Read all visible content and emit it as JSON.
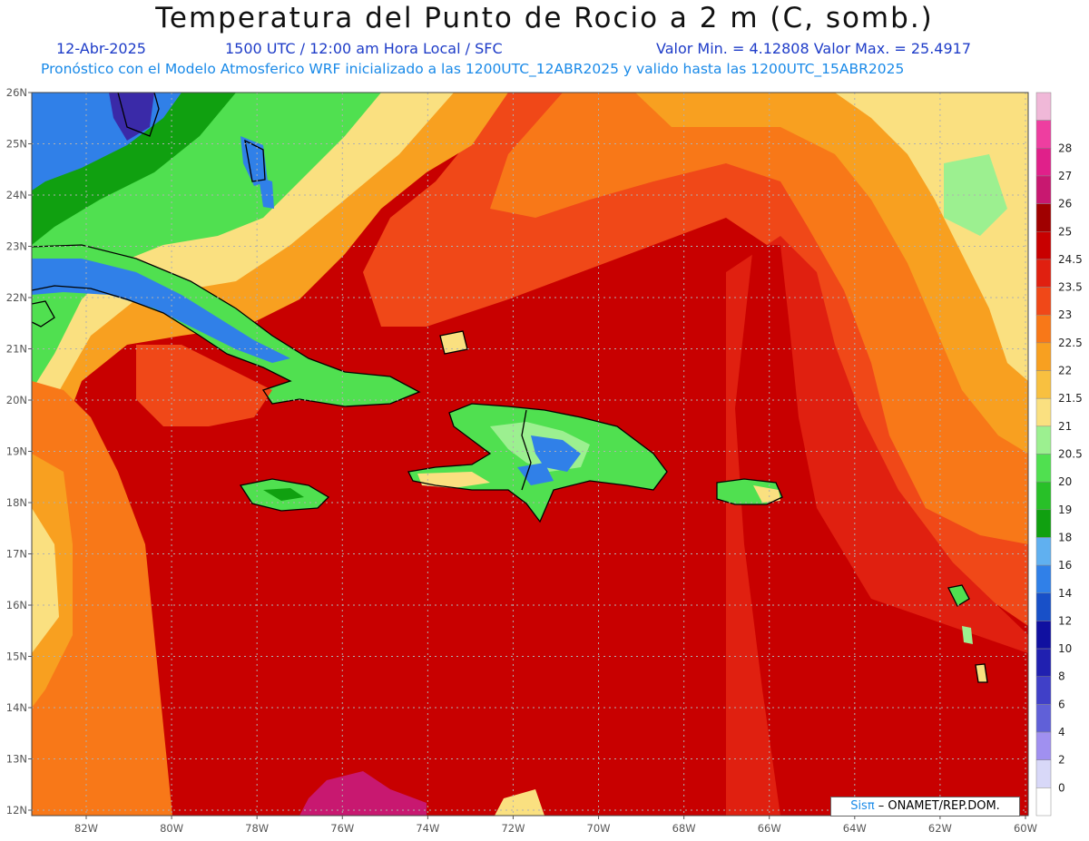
{
  "header": {
    "title": "Temperatura del Punto de Rocio a 2 m (C, somb.)",
    "date": "12-Abr-2025",
    "time": "1500 UTC / 12:00 am Hora Local / SFC",
    "min_max": "Valor Min. = 4.12808  Valor Max. = 25.4917",
    "model_info": "Pronóstico con el Modelo Atmosferico WRF inicializado a las 1200UTC_12ABR2025 y valido hasta las  1200UTC_15ABR2025"
  },
  "map": {
    "lat_labels": [
      "26N",
      "25N",
      "24N",
      "23N",
      "22N",
      "21N",
      "20N",
      "19N",
      "18N",
      "17N",
      "16N",
      "15N",
      "14N",
      "13N",
      "12N"
    ],
    "lon_labels": [
      "82W",
      "80W",
      "78W",
      "76W",
      "74W",
      "72W",
      "70W",
      "68W",
      "66W",
      "64W",
      "62W",
      "60W"
    ]
  },
  "colorbar": {
    "levels": [
      {
        "label": "",
        "color": "#f0b8d8"
      },
      {
        "label": "28",
        "color": "#ee3ea0"
      },
      {
        "label": "27",
        "color": "#e0208a"
      },
      {
        "label": "26",
        "color": "#c81870"
      },
      {
        "label": "25",
        "color": "#a00000"
      },
      {
        "label": "24.5",
        "color": "#c80000"
      },
      {
        "label": "23.5",
        "color": "#e02010"
      },
      {
        "label": "23",
        "color": "#f04818"
      },
      {
        "label": "22.5",
        "color": "#f87818"
      },
      {
        "label": "22",
        "color": "#f8a020"
      },
      {
        "label": "21.5",
        "color": "#f8c040"
      },
      {
        "label": "21",
        "color": "#fae080"
      },
      {
        "label": "20.5",
        "color": "#9cf090"
      },
      {
        "label": "20",
        "color": "#50e050"
      },
      {
        "label": "19",
        "color": "#28c028"
      },
      {
        "label": "18",
        "color": "#10a010"
      },
      {
        "label": "16",
        "color": "#60b0f0"
      },
      {
        "label": "14",
        "color": "#3080e8"
      },
      {
        "label": "12",
        "color": "#1850c8"
      },
      {
        "label": "10",
        "color": "#1010a0"
      },
      {
        "label": "8",
        "color": "#2020b0"
      },
      {
        "label": "6",
        "color": "#4040c8"
      },
      {
        "label": "4",
        "color": "#6060d8"
      },
      {
        "label": "2",
        "color": "#a090f0"
      },
      {
        "label": "0",
        "color": "#d8d8f8"
      },
      {
        "label": "",
        "color": "#ffffff"
      }
    ]
  },
  "credit": {
    "brand": "Sisπ",
    "text": " – ONAMET/REP.DOM."
  },
  "colors": {
    "deep_red": "#c80000",
    "red": "#e02010",
    "orange_red": "#f04818",
    "orange": "#f87818",
    "light_orange": "#f8a020",
    "yellow": "#fae080",
    "green": "#50e050",
    "dark_green": "#10a010",
    "blue": "#3080e8",
    "magenta": "#c81870"
  }
}
